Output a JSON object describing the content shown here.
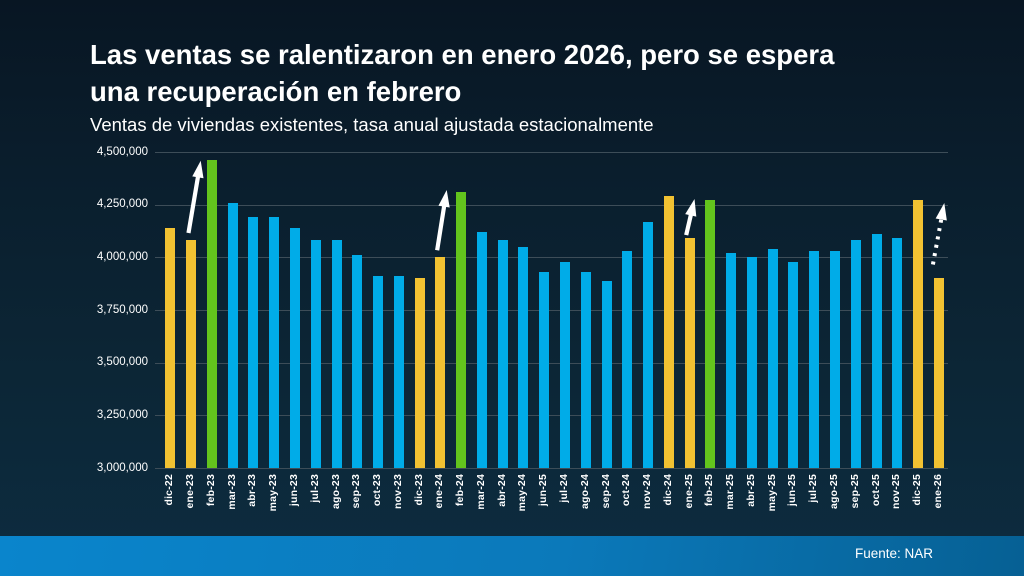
{
  "slide": {
    "title_line1": "Las ventas se ralentizaron en enero 2026, pero se espera",
    "title_line2": "una recuperación en febrero",
    "subtitle": "Ventas de viviendas existentes, tasa anual ajustada estacionalmente",
    "source": "Fuente: NAR"
  },
  "colors": {
    "bar_blue": "#00ace8",
    "bar_gold": "#f2c232",
    "bar_green": "#63c41d",
    "gridline": "#3d4d58",
    "background_top": "#081623",
    "background_bottom": "#0d2c40",
    "footer_left": "#0a85cc",
    "footer_right": "#066094",
    "text": "#ffffff"
  },
  "chart_data": {
    "type": "bar",
    "title": "Ventas de viviendas existentes, tasa anual ajustada estacionalmente",
    "xlabel": "",
    "ylabel": "",
    "ylim": [
      3000000,
      4500000
    ],
    "y_tick_interval": 250000,
    "grid": true,
    "y_ticks": [
      "4,500,000",
      "4,250,000",
      "4,000,000",
      "3,750,000",
      "3,500,000",
      "3,250,000",
      "3,000,000"
    ],
    "categories": [
      "dic-22",
      "ene-23",
      "feb-23",
      "mar-23",
      "abr-23",
      "may-23",
      "jun-23",
      "jul-23",
      "ago-23",
      "sep-23",
      "oct-23",
      "nov-23",
      "dic-23",
      "ene-24",
      "feb-24",
      "mar-24",
      "abr-24",
      "may-24",
      "jun-25",
      "jul-24",
      "ago-24",
      "sep-24",
      "oct-24",
      "nov-24",
      "dic-24",
      "ene-25",
      "feb-25",
      "mar-25",
      "abr-25",
      "may-25",
      "jun-25",
      "jul-25",
      "ago-25",
      "sep-25",
      "oct-25",
      "nov-25",
      "dic-25",
      "ene-26"
    ],
    "values": [
      4140000,
      4080000,
      4460000,
      4260000,
      4190000,
      4190000,
      4140000,
      4080000,
      4080000,
      4010000,
      3910000,
      3910000,
      3900000,
      4000000,
      4310000,
      4120000,
      4080000,
      4050000,
      3930000,
      3980000,
      3930000,
      3890000,
      4030000,
      4170000,
      4290000,
      4090000,
      4270000,
      4020000,
      4000000,
      4040000,
      3980000,
      4030000,
      4030000,
      4080000,
      4110000,
      4090000,
      4270000,
      3900000
    ],
    "bar_colors": [
      "gold",
      "gold",
      "green",
      "blue",
      "blue",
      "blue",
      "blue",
      "blue",
      "blue",
      "blue",
      "blue",
      "blue",
      "gold",
      "gold",
      "green",
      "blue",
      "blue",
      "blue",
      "blue",
      "blue",
      "blue",
      "blue",
      "blue",
      "blue",
      "gold",
      "gold",
      "green",
      "blue",
      "blue",
      "blue",
      "blue",
      "blue",
      "blue",
      "blue",
      "blue",
      "blue",
      "gold",
      "gold"
    ],
    "annotations": [
      {
        "type": "arrow",
        "style": "solid",
        "from": "ene-23",
        "to": "feb-23"
      },
      {
        "type": "arrow",
        "style": "solid",
        "from": "ene-24",
        "to": "feb-24"
      },
      {
        "type": "arrow",
        "style": "solid",
        "from": "ene-25",
        "to": "feb-25"
      },
      {
        "type": "arrow",
        "style": "dotted",
        "from": "ene-26",
        "to": "feb-26 esperado"
      }
    ]
  }
}
